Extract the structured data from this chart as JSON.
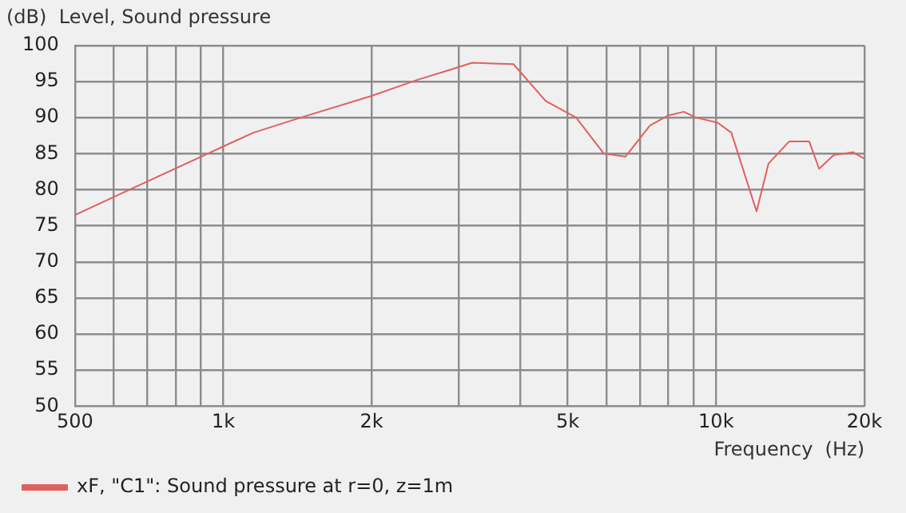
{
  "chart_data": {
    "type": "line",
    "title": "(dB)  Level, Sound pressure",
    "xlabel": "Frequency  (Hz)",
    "log": "x",
    "grid": true,
    "legend": "bottom",
    "marker": "none",
    "line_style": "solid",
    "xlim": [
      500,
      20000
    ],
    "ylim": [
      50,
      100
    ],
    "xticks": [
      500,
      {
        "value": 600,
        "label": null
      },
      {
        "value": 700,
        "label": null
      },
      {
        "value": 800,
        "label": null
      },
      {
        "value": 900,
        "label": null
      },
      {
        "value": 1000,
        "label": "1k"
      },
      {
        "value": 2000,
        "label": "2k"
      },
      {
        "value": 3000,
        "label": null
      },
      {
        "value": 4000,
        "label": null
      },
      {
        "value": 5000,
        "label": "5k"
      },
      {
        "value": 6000,
        "label": null
      },
      {
        "value": 7000,
        "label": null
      },
      {
        "value": 8000,
        "label": null
      },
      {
        "value": 9000,
        "label": null
      },
      {
        "value": 10000,
        "label": "10k"
      },
      {
        "value": 20000,
        "label": "20k"
      }
    ],
    "yticks": [
      50,
      55,
      60,
      65,
      70,
      75,
      80,
      85,
      90,
      95,
      100
    ],
    "series": [
      {
        "name": "xF, \"C1\": Sound pressure at r=0, z=1m",
        "color": "#e06060",
        "x": [
          500,
          645,
          1000,
          1150,
          1436,
          2000,
          2470,
          2880,
          3200,
          3530,
          3880,
          4510,
          5200,
          5920,
          6550,
          7340,
          8000,
          8600,
          9100,
          10070,
          10740,
          12080,
          12770,
          14070,
          15450,
          16180,
          17330,
          18950,
          20000
        ],
        "values": [
          76.5,
          80,
          86,
          87.9,
          90,
          93,
          95.2,
          96.6,
          97.6,
          97.5,
          97.4,
          92.3,
          90,
          85,
          84.6,
          88.9,
          90.3,
          90.8,
          90,
          89.3,
          87.9,
          77,
          83.6,
          86.7,
          86.7,
          82.9,
          84.8,
          85.2,
          84.3
        ]
      }
    ]
  }
}
